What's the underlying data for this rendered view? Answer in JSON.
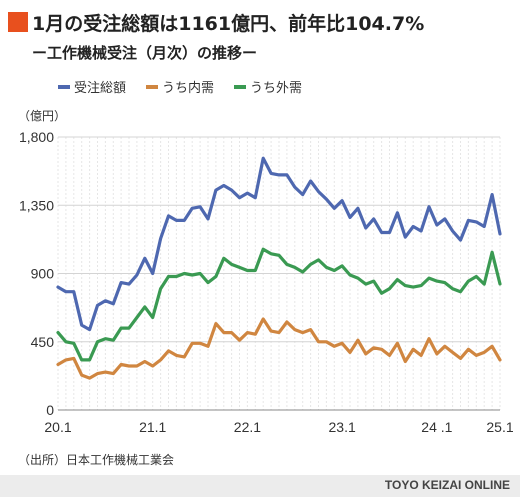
{
  "title": "1月の受注総額は1161億円、前年比104.7%",
  "subtitle": "ー工作機械受注（月次）の推移ー",
  "source": "（出所）日本工作機械工業会",
  "credit": "TOYO KEIZAI ONLINE",
  "chart_data": {
    "type": "line",
    "ylabel": "（億円）",
    "ylim": [
      0,
      1800
    ],
    "yticks": [
      0,
      450,
      900,
      1350,
      1800
    ],
    "ytick_labels": [
      "0",
      "450",
      "900",
      "1,350",
      "1,800"
    ],
    "xtick_labels": [
      "20.1",
      "21.1",
      "22.1",
      "23.1",
      "24 .1",
      "25.1"
    ],
    "grid": true,
    "legend": "top-left",
    "series": [
      {
        "name": "受注総額",
        "color": "#4e68b0",
        "values": [
          810,
          780,
          780,
          560,
          530,
          690,
          720,
          700,
          840,
          830,
          890,
          1000,
          900,
          1130,
          1280,
          1250,
          1250,
          1330,
          1340,
          1260,
          1450,
          1480,
          1450,
          1400,
          1430,
          1400,
          1660,
          1560,
          1550,
          1550,
          1470,
          1420,
          1510,
          1440,
          1390,
          1330,
          1380,
          1270,
          1330,
          1200,
          1260,
          1170,
          1170,
          1300,
          1140,
          1210,
          1180,
          1340,
          1220,
          1260,
          1180,
          1120,
          1250,
          1240,
          1210,
          1420,
          1161
        ]
      },
      {
        "name": "うち内需",
        "color": "#d08640",
        "values": [
          300,
          330,
          340,
          230,
          210,
          240,
          250,
          240,
          300,
          290,
          290,
          320,
          290,
          330,
          390,
          360,
          350,
          440,
          440,
          420,
          570,
          510,
          510,
          460,
          510,
          500,
          600,
          520,
          510,
          580,
          530,
          510,
          530,
          450,
          450,
          420,
          440,
          380,
          460,
          370,
          410,
          400,
          360,
          440,
          320,
          400,
          360,
          470,
          370,
          420,
          380,
          340,
          400,
          360,
          380,
          420,
          330
        ]
      },
      {
        "name": "うち外需",
        "color": "#3a9a52",
        "values": [
          510,
          450,
          440,
          330,
          330,
          450,
          470,
          460,
          540,
          540,
          610,
          680,
          610,
          800,
          880,
          880,
          900,
          890,
          900,
          840,
          880,
          1000,
          960,
          940,
          920,
          920,
          1060,
          1030,
          1020,
          960,
          940,
          910,
          960,
          990,
          940,
          920,
          950,
          890,
          870,
          830,
          850,
          770,
          800,
          860,
          820,
          810,
          820,
          870,
          850,
          840,
          800,
          780,
          850,
          880,
          830,
          1040,
          831
        ]
      }
    ]
  }
}
